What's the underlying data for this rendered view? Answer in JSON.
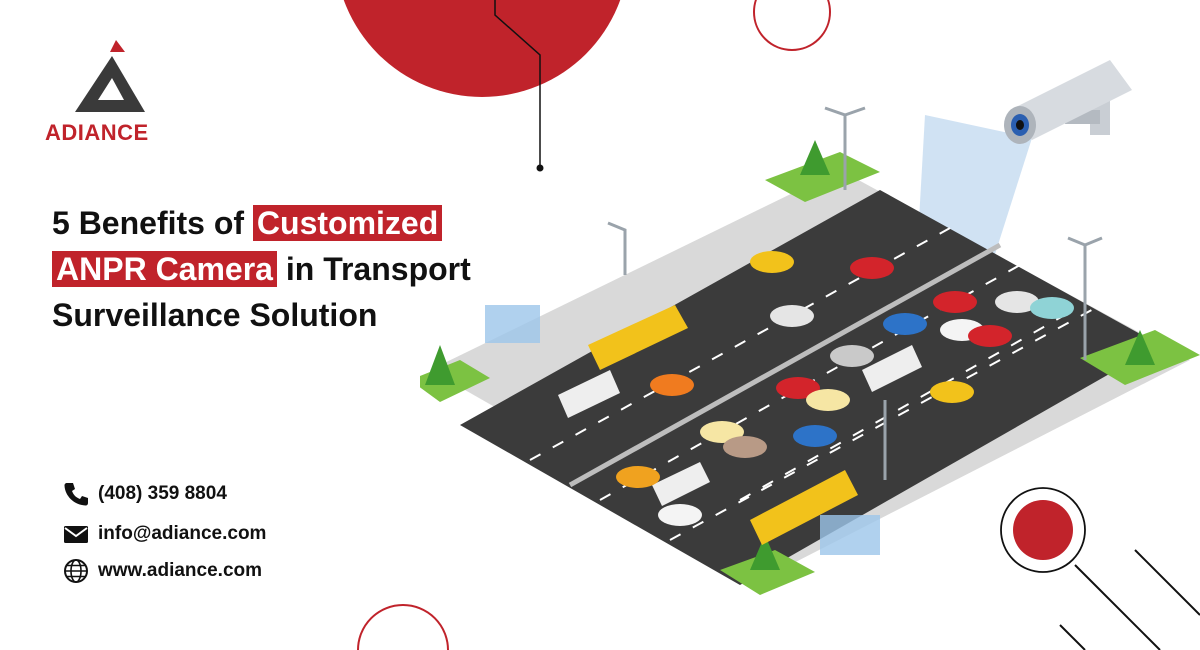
{
  "brand": {
    "name": "ADIANCE",
    "colors": {
      "red": "#c0232b",
      "dark": "#3a3a3a",
      "green": "#7cc242"
    }
  },
  "headline": {
    "line1_plain": "5 Benefits of ",
    "line1_highlight": "Customized",
    "line2_highlight": "ANPR Camera",
    "line2_plain": " in Transport",
    "line3": "Surveillance Solution"
  },
  "contact": {
    "phone": "(408) 359  8804",
    "email": "info@adiance.com",
    "website": "www.adiance.com"
  },
  "icons": {
    "phone": "phone-icon",
    "email": "envelope-icon",
    "website": "globe-icon",
    "camera": "cctv-camera-icon"
  }
}
